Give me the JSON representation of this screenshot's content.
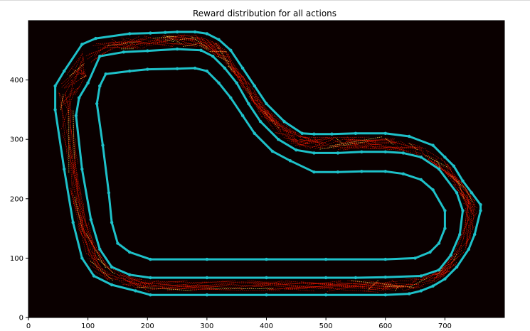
{
  "chart_data": {
    "type": "scatter",
    "title": "Reward distribution for all actions",
    "xlabel": "",
    "ylabel": "",
    "xlim": [
      0,
      800
    ],
    "ylim": [
      0,
      500
    ],
    "xticks": [
      0,
      100,
      200,
      300,
      400,
      500,
      600,
      700
    ],
    "yticks": [
      0,
      100,
      200,
      300,
      400
    ],
    "grid": false,
    "background": "#0a0000",
    "colors": {
      "track": "#1ec1c9",
      "reward": "#ff1a00",
      "reward_hot": "#ffd24a"
    },
    "series": [
      {
        "kind": "line",
        "points": [
          [
            90,
            460
          ],
          [
            113,
            470
          ],
          [
            170,
            478
          ],
          [
            205,
            479
          ],
          [
            230,
            480
          ],
          [
            250,
            481
          ],
          [
            280,
            481
          ],
          [
            300,
            478
          ],
          [
            320,
            468
          ],
          [
            340,
            450
          ],
          [
            360,
            420
          ],
          [
            380,
            390
          ],
          [
            400,
            360
          ],
          [
            430,
            330
          ],
          [
            460,
            310
          ],
          [
            480,
            309
          ],
          [
            510,
            309
          ],
          [
            550,
            310
          ],
          [
            600,
            310
          ],
          [
            640,
            305
          ],
          [
            680,
            290
          ],
          [
            700,
            270
          ],
          [
            715,
            255
          ],
          [
            730,
            230
          ],
          [
            745,
            210
          ],
          [
            760,
            190
          ],
          [
            760,
            180
          ],
          [
            750,
            140
          ],
          [
            740,
            115
          ],
          [
            720,
            85
          ],
          [
            700,
            65
          ],
          [
            680,
            53
          ],
          [
            660,
            45
          ],
          [
            640,
            40
          ],
          [
            600,
            38
          ],
          [
            500,
            38
          ],
          [
            400,
            38
          ],
          [
            300,
            38
          ],
          [
            205,
            38
          ],
          [
            180,
            45
          ],
          [
            140,
            55
          ],
          [
            110,
            70
          ],
          [
            90,
            100
          ],
          [
            75,
            160
          ],
          [
            60,
            250
          ],
          [
            45,
            350
          ],
          [
            45,
            390
          ],
          [
            60,
            415
          ],
          [
            90,
            460
          ]
        ]
      },
      {
        "kind": "line",
        "points": [
          [
            100,
            395
          ],
          [
            120,
            440
          ],
          [
            160,
            447
          ],
          [
            200,
            449
          ],
          [
            250,
            452
          ],
          [
            290,
            450
          ],
          [
            310,
            440
          ],
          [
            330,
            420
          ],
          [
            350,
            395
          ],
          [
            370,
            360
          ],
          [
            390,
            330
          ],
          [
            420,
            300
          ],
          [
            450,
            282
          ],
          [
            480,
            277
          ],
          [
            520,
            277
          ],
          [
            560,
            279
          ],
          [
            600,
            279
          ],
          [
            630,
            277
          ],
          [
            660,
            270
          ],
          [
            690,
            250
          ],
          [
            720,
            210
          ],
          [
            730,
            180
          ],
          [
            725,
            140
          ],
          [
            710,
            105
          ],
          [
            690,
            80
          ],
          [
            660,
            70
          ],
          [
            600,
            68
          ],
          [
            550,
            67
          ],
          [
            500,
            67
          ],
          [
            400,
            67
          ],
          [
            300,
            67
          ],
          [
            205,
            67
          ],
          [
            170,
            72
          ],
          [
            140,
            85
          ],
          [
            120,
            115
          ],
          [
            105,
            165
          ],
          [
            90,
            250
          ],
          [
            80,
            340
          ],
          [
            85,
            370
          ],
          [
            100,
            395
          ]
        ]
      },
      {
        "kind": "line",
        "points": [
          [
            120,
            390
          ],
          [
            130,
            410
          ],
          [
            170,
            415
          ],
          [
            200,
            418
          ],
          [
            250,
            419
          ],
          [
            280,
            420
          ],
          [
            300,
            415
          ],
          [
            320,
            395
          ],
          [
            340,
            370
          ],
          [
            360,
            340
          ],
          [
            380,
            310
          ],
          [
            410,
            280
          ],
          [
            440,
            264
          ],
          [
            480,
            245
          ],
          [
            520,
            245
          ],
          [
            560,
            246
          ],
          [
            600,
            246
          ],
          [
            630,
            242
          ],
          [
            660,
            232
          ],
          [
            680,
            215
          ],
          [
            700,
            180
          ],
          [
            700,
            150
          ],
          [
            690,
            125
          ],
          [
            675,
            110
          ],
          [
            650,
            100
          ],
          [
            600,
            98
          ],
          [
            500,
            98
          ],
          [
            400,
            98
          ],
          [
            300,
            98
          ],
          [
            205,
            98
          ],
          [
            170,
            110
          ],
          [
            150,
            125
          ],
          [
            140,
            160
          ],
          [
            135,
            210
          ],
          [
            125,
            290
          ],
          [
            115,
            360
          ],
          [
            120,
            390
          ]
        ]
      }
    ]
  }
}
